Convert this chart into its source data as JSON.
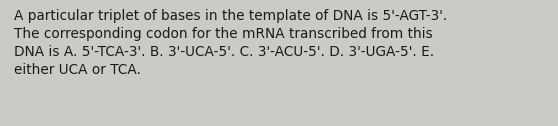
{
  "text": "A particular triplet of bases in the template of DNA is 5'-AGT-3'.\nThe corresponding codon for the mRNA transcribed from this\nDNA is A. 5'-TCA-3'. B. 3'-UCA-5'. C. 3'-ACU-5'. D. 3'-UGA-5'. E.\neither UCA or TCA.",
  "background_color": "#cccac5",
  "text_color": "#1a1a1a",
  "font_size": 9.8,
  "fig_width": 5.58,
  "fig_height": 1.26,
  "dpi": 100
}
